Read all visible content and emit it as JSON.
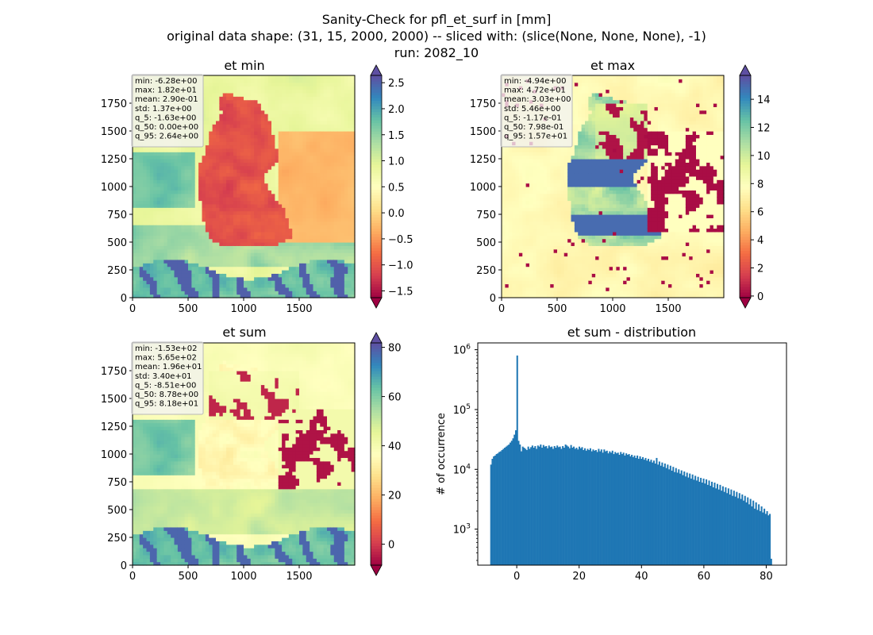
{
  "figure": {
    "suptitle_lines": [
      "Sanity-Check for pfl_et_surf in [mm]",
      "original data shape: (31, 15, 2000, 2000) -- sliced with: (slice(None, None, None), -1)",
      "run: 2082_10"
    ]
  },
  "chart_data": [
    {
      "type": "heatmap",
      "title": "et min",
      "xlim": [
        0,
        2000
      ],
      "ylim": [
        0,
        2000
      ],
      "x_ticks": [
        0,
        500,
        1000,
        1500
      ],
      "y_ticks": [
        0,
        250,
        500,
        750,
        1000,
        1250,
        1500,
        1750
      ],
      "colormap": "Spectral",
      "colorbar": {
        "vmin": -1.63,
        "vmax": 2.64,
        "ticks": [
          -1.5,
          -1.0,
          -0.5,
          0.0,
          0.5,
          1.0,
          1.5,
          2.0,
          2.5
        ],
        "tick_labels": [
          "−1.5",
          "−1.0",
          "−0.5",
          "0.0",
          "0.5",
          "1.0",
          "1.5",
          "2.0",
          "2.5"
        ],
        "extend": "both"
      },
      "stats": [
        "min: -6.28e+00",
        "max: 1.82e+01",
        "mean: 2.90e-01",
        "std: 1.37e+00",
        "q_5: -1.63e+00",
        "q_50: 0.00e+00",
        "q_95: 2.64e+00"
      ],
      "grid": false
    },
    {
      "type": "heatmap",
      "title": "et max",
      "xlim": [
        0,
        2000
      ],
      "ylim": [
        0,
        2000
      ],
      "x_ticks": [
        0,
        500,
        1000,
        1500
      ],
      "y_ticks": [
        0,
        250,
        500,
        750,
        1000,
        1250,
        1500,
        1750
      ],
      "colormap": "Spectral",
      "colorbar": {
        "vmin": -0.117,
        "vmax": 15.7,
        "ticks": [
          0,
          2,
          4,
          6,
          8,
          10,
          12,
          14
        ],
        "tick_labels": [
          "0",
          "2",
          "4",
          "6",
          "8",
          "10",
          "12",
          "14"
        ],
        "extend": "both"
      },
      "stats": [
        "min: -4.94e+00",
        "max: 4.72e+01",
        "mean: 3.03e+00",
        "std: 5.46e+00",
        "q_5: -1.17e-01",
        "q_50: 7.98e-01",
        "q_95: 1.57e+01"
      ],
      "grid": false
    },
    {
      "type": "heatmap",
      "title": "et sum",
      "xlim": [
        0,
        2000
      ],
      "ylim": [
        0,
        2000
      ],
      "x_ticks": [
        0,
        500,
        1000,
        1500
      ],
      "y_ticks": [
        0,
        250,
        500,
        750,
        1000,
        1250,
        1500,
        1750
      ],
      "colormap": "Spectral",
      "colorbar": {
        "vmin": -8.51,
        "vmax": 81.8,
        "ticks": [
          0,
          20,
          40,
          60,
          80
        ],
        "tick_labels": [
          "0",
          "20",
          "40",
          "60",
          "80"
        ],
        "extend": "both"
      },
      "stats": [
        "min: -1.53e+02",
        "max: 5.65e+02",
        "mean: 1.96e+01",
        "std: 3.40e+01",
        "q_5: -8.51e+00",
        "q_50: 8.78e+00",
        "q_95: 8.18e+01"
      ],
      "grid": false
    },
    {
      "type": "bar",
      "title": "et sum - distribution",
      "xlabel": "",
      "ylabel": "# of occurrence",
      "y_scale": "log",
      "xlim": [
        -12.5,
        86.5
      ],
      "ylim": [
        250,
        1300000
      ],
      "x_ticks": [
        0,
        20,
        40,
        60,
        80
      ],
      "y_ticks": [
        {
          "value": 1000,
          "base": "10",
          "exp": "3"
        },
        {
          "value": 10000,
          "base": "10",
          "exp": "4"
        },
        {
          "value": 100000,
          "base": "10",
          "exp": "5"
        },
        {
          "value": 1000000,
          "base": "10",
          "exp": "6"
        }
      ],
      "bin_start": -8.51,
      "bin_end": 81.8,
      "color": "#1f77b4",
      "values": [
        12000,
        15000,
        16500,
        17000,
        18000,
        18500,
        19500,
        20000,
        21000,
        22000,
        23000,
        24000,
        25000,
        26000,
        28000,
        30000,
        33000,
        38000,
        45000,
        800000,
        30000,
        26000,
        20000,
        24000,
        23000,
        22000,
        21000,
        24000,
        22000,
        23500,
        25000,
        23000,
        24500,
        22000,
        25000,
        24000,
        26000,
        23000,
        25500,
        24000,
        24500,
        22500,
        25000,
        23500,
        24000,
        22000,
        24500,
        23000,
        25000,
        23500,
        24000,
        22000,
        24500,
        23000,
        26000,
        25000,
        24000,
        22500,
        25500,
        23000,
        24000,
        22000,
        23000,
        21500,
        24000,
        22500,
        23500,
        21000,
        22500,
        20500,
        22000,
        21000,
        22500,
        20000,
        21500,
        20500,
        21000,
        19500,
        22000,
        20000,
        21500,
        19000,
        21500,
        20000,
        20500,
        18500,
        20000,
        19000,
        20500,
        18000,
        19500,
        18500,
        19000,
        17500,
        19500,
        18000,
        19000,
        17000,
        18500,
        17500,
        18000,
        16500,
        17500,
        16000,
        17000,
        15500,
        17000,
        15000,
        16500,
        15000,
        16000,
        14500,
        15500,
        14000,
        15000,
        13500,
        14500,
        13000,
        14000,
        12500,
        15500,
        12000,
        13500,
        11500,
        13000,
        11000,
        12500,
        10500,
        12000,
        10000,
        11500,
        9500,
        11000,
        9000,
        10500,
        8800,
        10000,
        8500,
        9600,
        8000,
        9200,
        7600,
        8800,
        7300,
        8500,
        7000,
        8200,
        6700,
        7800,
        6500,
        7500,
        6200,
        7200,
        6000,
        7000,
        5800,
        6800,
        5500,
        6500,
        5300,
        6200,
        5000,
        6000,
        4800,
        5700,
        4600,
        5500,
        4400,
        5200,
        4200,
        5000,
        4000,
        4800,
        3800,
        4600,
        3600,
        4400,
        3500,
        4200,
        3300,
        4000,
        3200,
        3800,
        3000,
        3600,
        2800,
        3400,
        2600,
        3200,
        2400,
        3000,
        2200,
        2800,
        2100,
        2600,
        2000,
        2400,
        1900,
        2200,
        1800,
        2000,
        1700,
        1800,
        320
      ],
      "grid": false
    }
  ]
}
